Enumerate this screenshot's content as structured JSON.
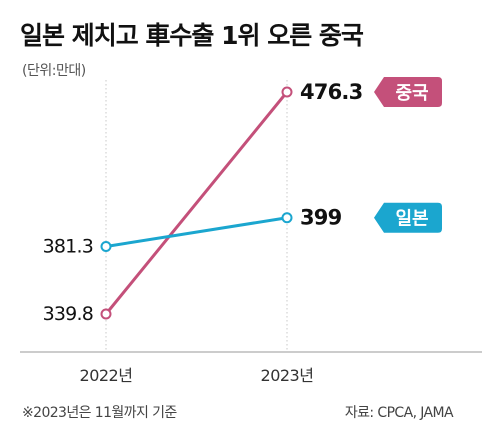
{
  "title": "일본 제치고 車수출 1위 오른 중국",
  "unit_label": "(단위:만대)",
  "footnote": "※2023년은 11월까지 기준",
  "source": "자료: CPCA, JAMA",
  "chart_data": {
    "type": "line",
    "title": "일본 제치고 車수출 1위 오른 중국",
    "ylabel": "(단위:만대)",
    "categories": [
      "2022년",
      "2023년"
    ],
    "series": [
      {
        "name": "중국",
        "color": "#c4507a",
        "values": [
          339.8,
          476.3
        ],
        "data_labels": [
          "339.8",
          "476.3"
        ]
      },
      {
        "name": "일본",
        "color": "#1ba6cf",
        "values": [
          381.3,
          399
        ],
        "data_labels": [
          "381.3",
          "399"
        ]
      }
    ],
    "ylim": [
      300,
      500
    ],
    "grid": false
  }
}
